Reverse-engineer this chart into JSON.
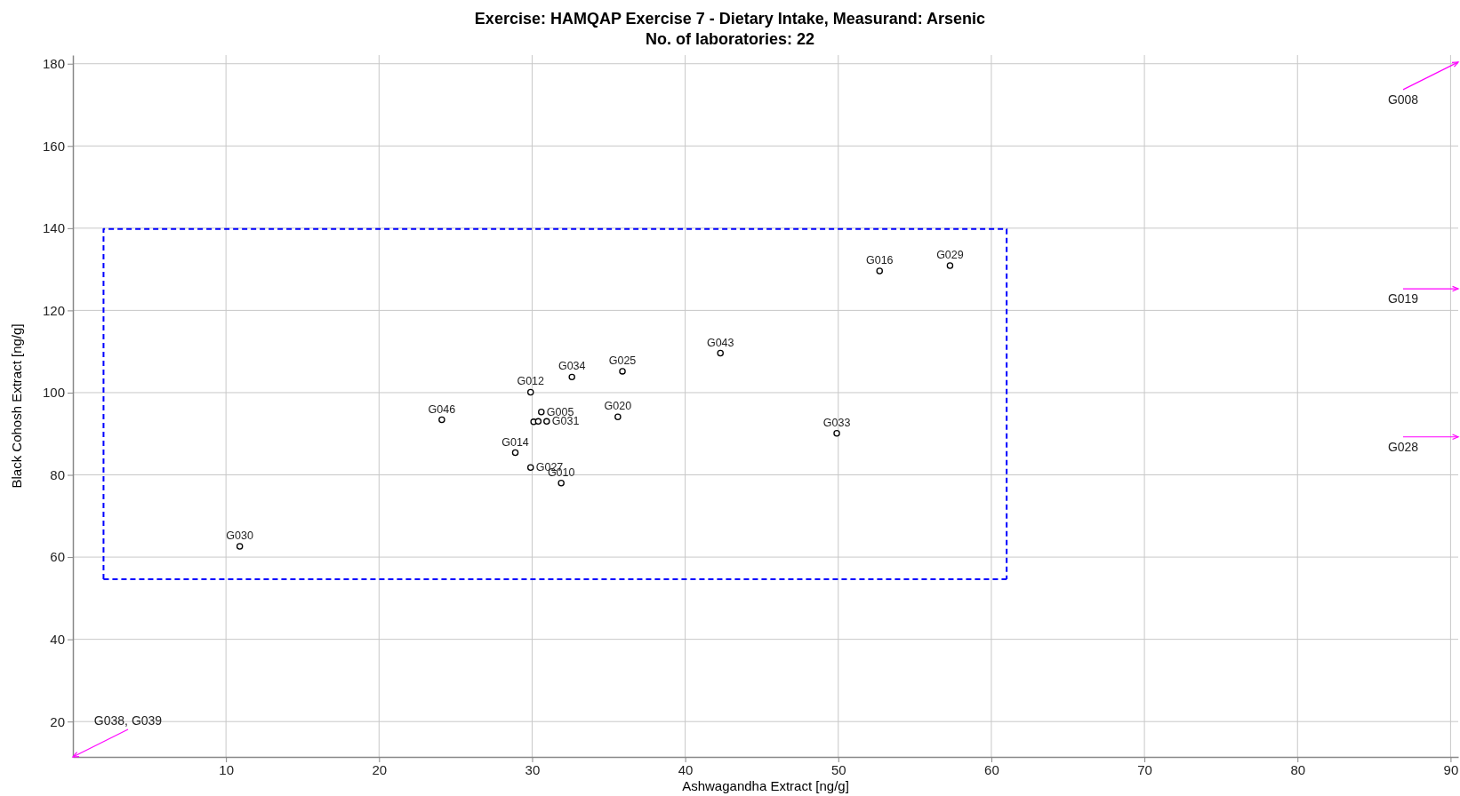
{
  "chart_data": {
    "type": "scatter",
    "title": "Exercise: HAMQAP Exercise 7 - Dietary Intake, Measurand: Arsenic",
    "subtitle": "No. of laboratories: 22",
    "xlabel": "Ashwagandha Extract [ng/g]",
    "ylabel": "Black Cohosh Extract [ng/g]",
    "xlim": [
      0,
      90.5
    ],
    "ylim": [
      11.4,
      182.1
    ],
    "xticks": [
      10,
      20,
      30,
      40,
      50,
      60,
      70,
      80,
      90
    ],
    "yticks": [
      20,
      40,
      60,
      80,
      100,
      120,
      140,
      160,
      180
    ],
    "grid": true,
    "series": [
      {
        "type": "scatter",
        "marker": "circle",
        "color": "#000000",
        "x": [
          52.7,
          57.3,
          42.3,
          32.6,
          35.9,
          29.9,
          30.6,
          30.95,
          30.1,
          30.4,
          35.6,
          49.9,
          24.1,
          28.9,
          29.9,
          31.9,
          10.9
        ],
        "values": [
          129.6,
          130.9,
          109.6,
          103.8,
          105.2,
          100.1,
          95.3,
          93.0,
          92.9,
          93.0,
          94.1,
          90.1,
          93.4,
          85.4,
          81.8,
          78.0,
          62.6
        ]
      },
      {
        "type": "line",
        "marker": "none",
        "line_style": "dashed",
        "color": "#0000ff",
        "x": [
          2,
          2,
          61,
          61
        ],
        "values": [
          54.6,
          139.8,
          139.8,
          54.6
        ]
      },
      {
        "type": "line",
        "marker": "none",
        "line_style": "dashed",
        "color": "#0000ff",
        "x": [
          2,
          61
        ],
        "values": [
          54.6,
          54.6
        ]
      }
    ],
    "annotations": [
      {
        "text": "G016",
        "x": 52.7,
        "y": 129.6
      },
      {
        "text": "G029",
        "x": 57.3,
        "y": 130.9
      },
      {
        "text": "G043",
        "x": 42.3,
        "y": 109.6
      },
      {
        "text": "G034",
        "x": 32.6,
        "y": 103.8
      },
      {
        "text": "G025",
        "x": 35.9,
        "y": 105.2
      },
      {
        "text": "G012",
        "x": 29.9,
        "y": 100.1
      },
      {
        "text": "G005",
        "x": 30.6,
        "y": 95.3
      },
      {
        "text": "G031",
        "x": 30.95,
        "y": 93.0
      },
      {
        "text": "G020",
        "x": 35.6,
        "y": 94.1
      },
      {
        "text": "G033",
        "x": 49.9,
        "y": 90.1
      },
      {
        "text": "G046",
        "x": 24.1,
        "y": 93.4
      },
      {
        "text": "G014",
        "x": 28.9,
        "y": 85.4
      },
      {
        "text": "G027",
        "x": 29.9,
        "y": 81.8
      },
      {
        "text": "G010",
        "x": 31.9,
        "y": 78.0
      },
      {
        "text": "G030",
        "x": 10.9,
        "y": 62.6
      },
      "G008",
      "G019",
      "G028",
      "G038, G039"
    ]
  }
}
